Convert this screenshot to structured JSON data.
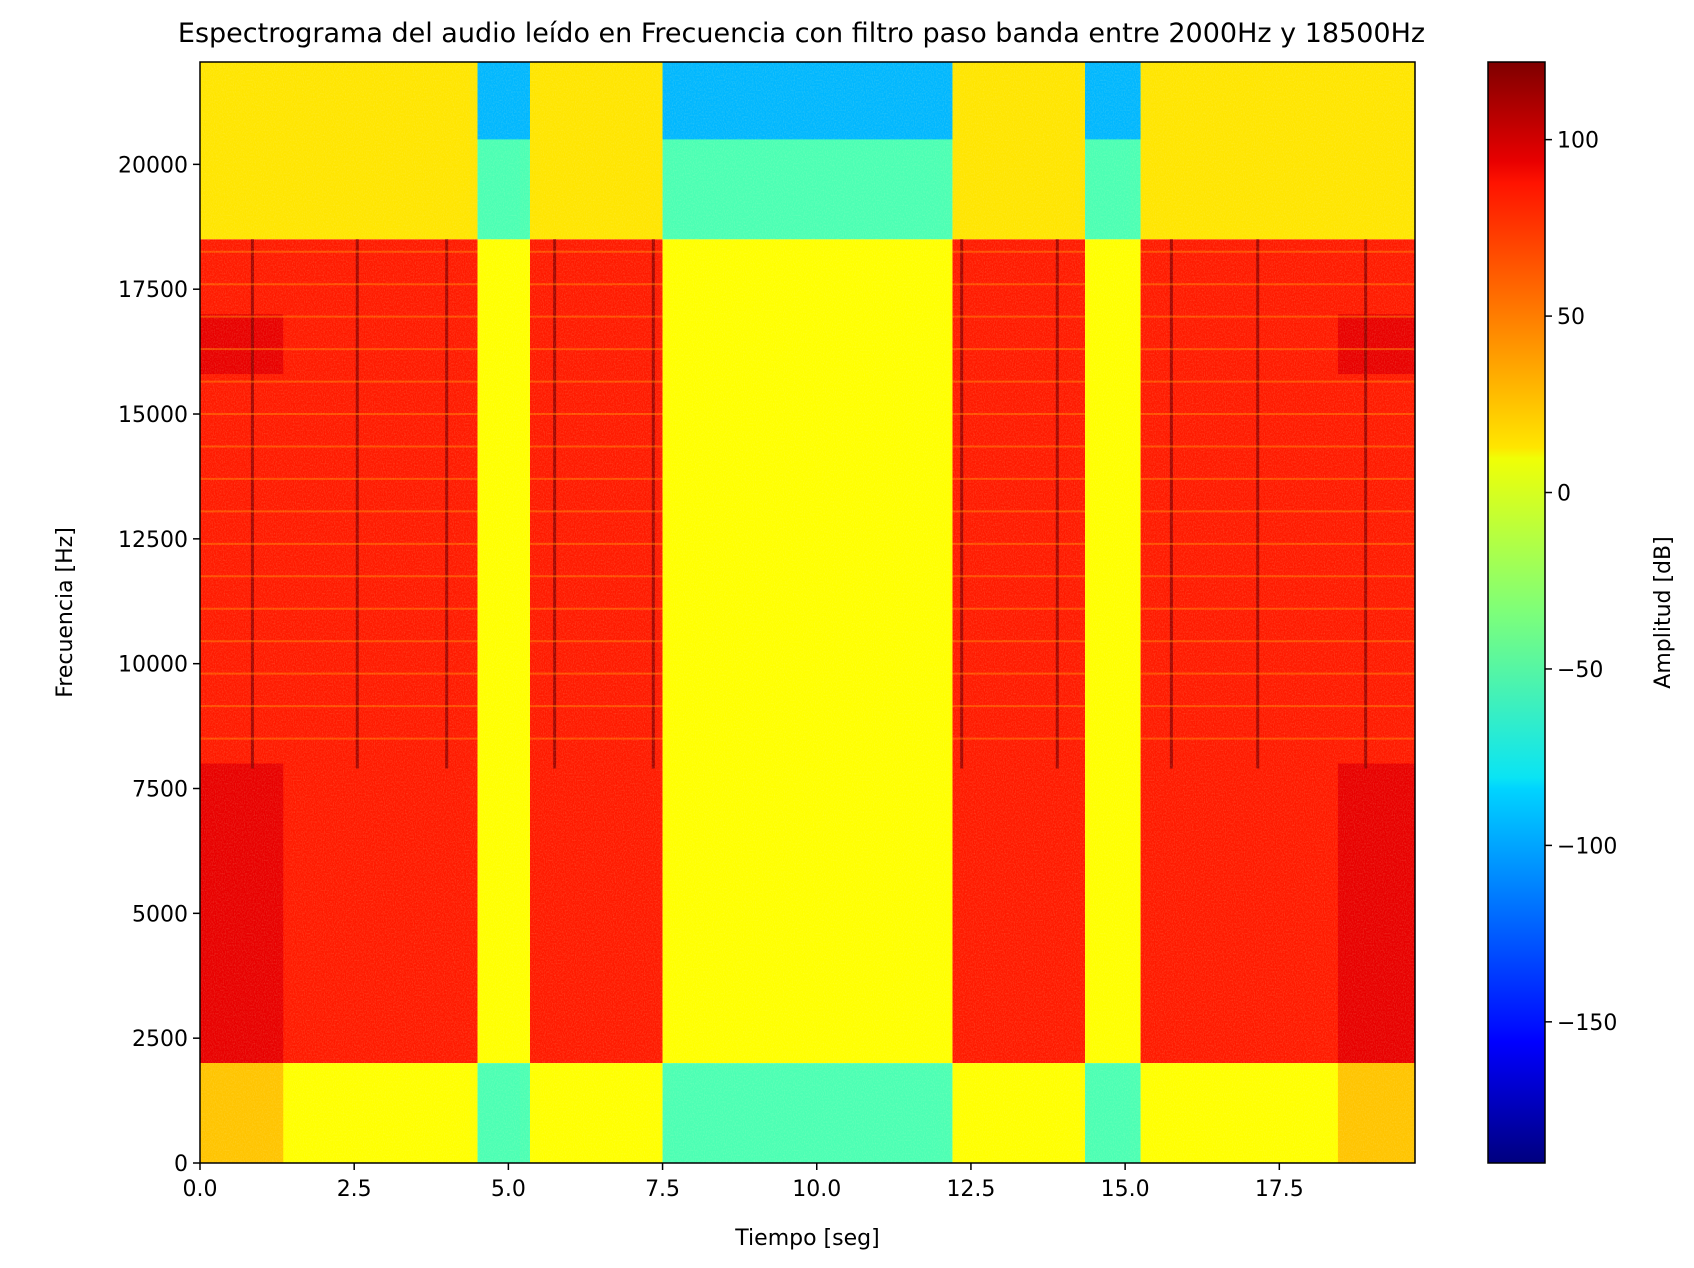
{
  "chart_data": {
    "type": "heatmap",
    "title": "Espectrograma del audio leído en Frecuencia con filtro paso banda entre 2000Hz y 18500Hz",
    "xlabel": "Tiempo [seg]",
    "ylabel": "Frecuencia [Hz]",
    "colorbar_label": "Amplitud [dB]",
    "colormap": "jet",
    "xlim": [
      0,
      19.7
    ],
    "ylim": [
      0,
      22050
    ],
    "clim": [
      -190,
      122
    ],
    "x_ticks": [
      0.0,
      2.5,
      5.0,
      7.5,
      10.0,
      12.5,
      15.0,
      17.5
    ],
    "x_tick_labels": [
      "0.0",
      "2.5",
      "5.0",
      "7.5",
      "10.0",
      "12.5",
      "15.0",
      "17.5"
    ],
    "y_ticks": [
      0,
      2500,
      5000,
      7500,
      10000,
      12500,
      15000,
      17500,
      20000
    ],
    "y_tick_labels": [
      "0",
      "2500",
      "5000",
      "7500",
      "10000",
      "12500",
      "15000",
      "17500",
      "20000"
    ],
    "colorbar_ticks": [
      100,
      50,
      0,
      -50,
      -100,
      -150
    ],
    "colorbar_tick_labels": [
      "100",
      "50",
      "0",
      "−50",
      "−100",
      "−150"
    ],
    "passband_hz": [
      2000,
      18500
    ],
    "signal_segments_seg": [
      [
        0.0,
        4.5
      ],
      [
        5.35,
        7.5
      ],
      [
        12.2,
        14.35
      ],
      [
        15.25,
        19.7
      ]
    ],
    "quiet_segments_seg": [
      [
        4.5,
        5.35
      ],
      [
        7.5,
        12.2
      ],
      [
        14.35,
        15.25
      ]
    ],
    "band_levels_db": {
      "signal_in_band": 75,
      "signal_edge_strong": 90,
      "signal_out_of_band": 5,
      "quiet_in_band": 5,
      "quiet_out_of_band": -50,
      "quiet_top": -95
    },
    "transient_times_seg": [
      0.85,
      2.55,
      4.0,
      5.75,
      7.35,
      12.35,
      13.9,
      15.75,
      17.15,
      18.9
    ]
  }
}
